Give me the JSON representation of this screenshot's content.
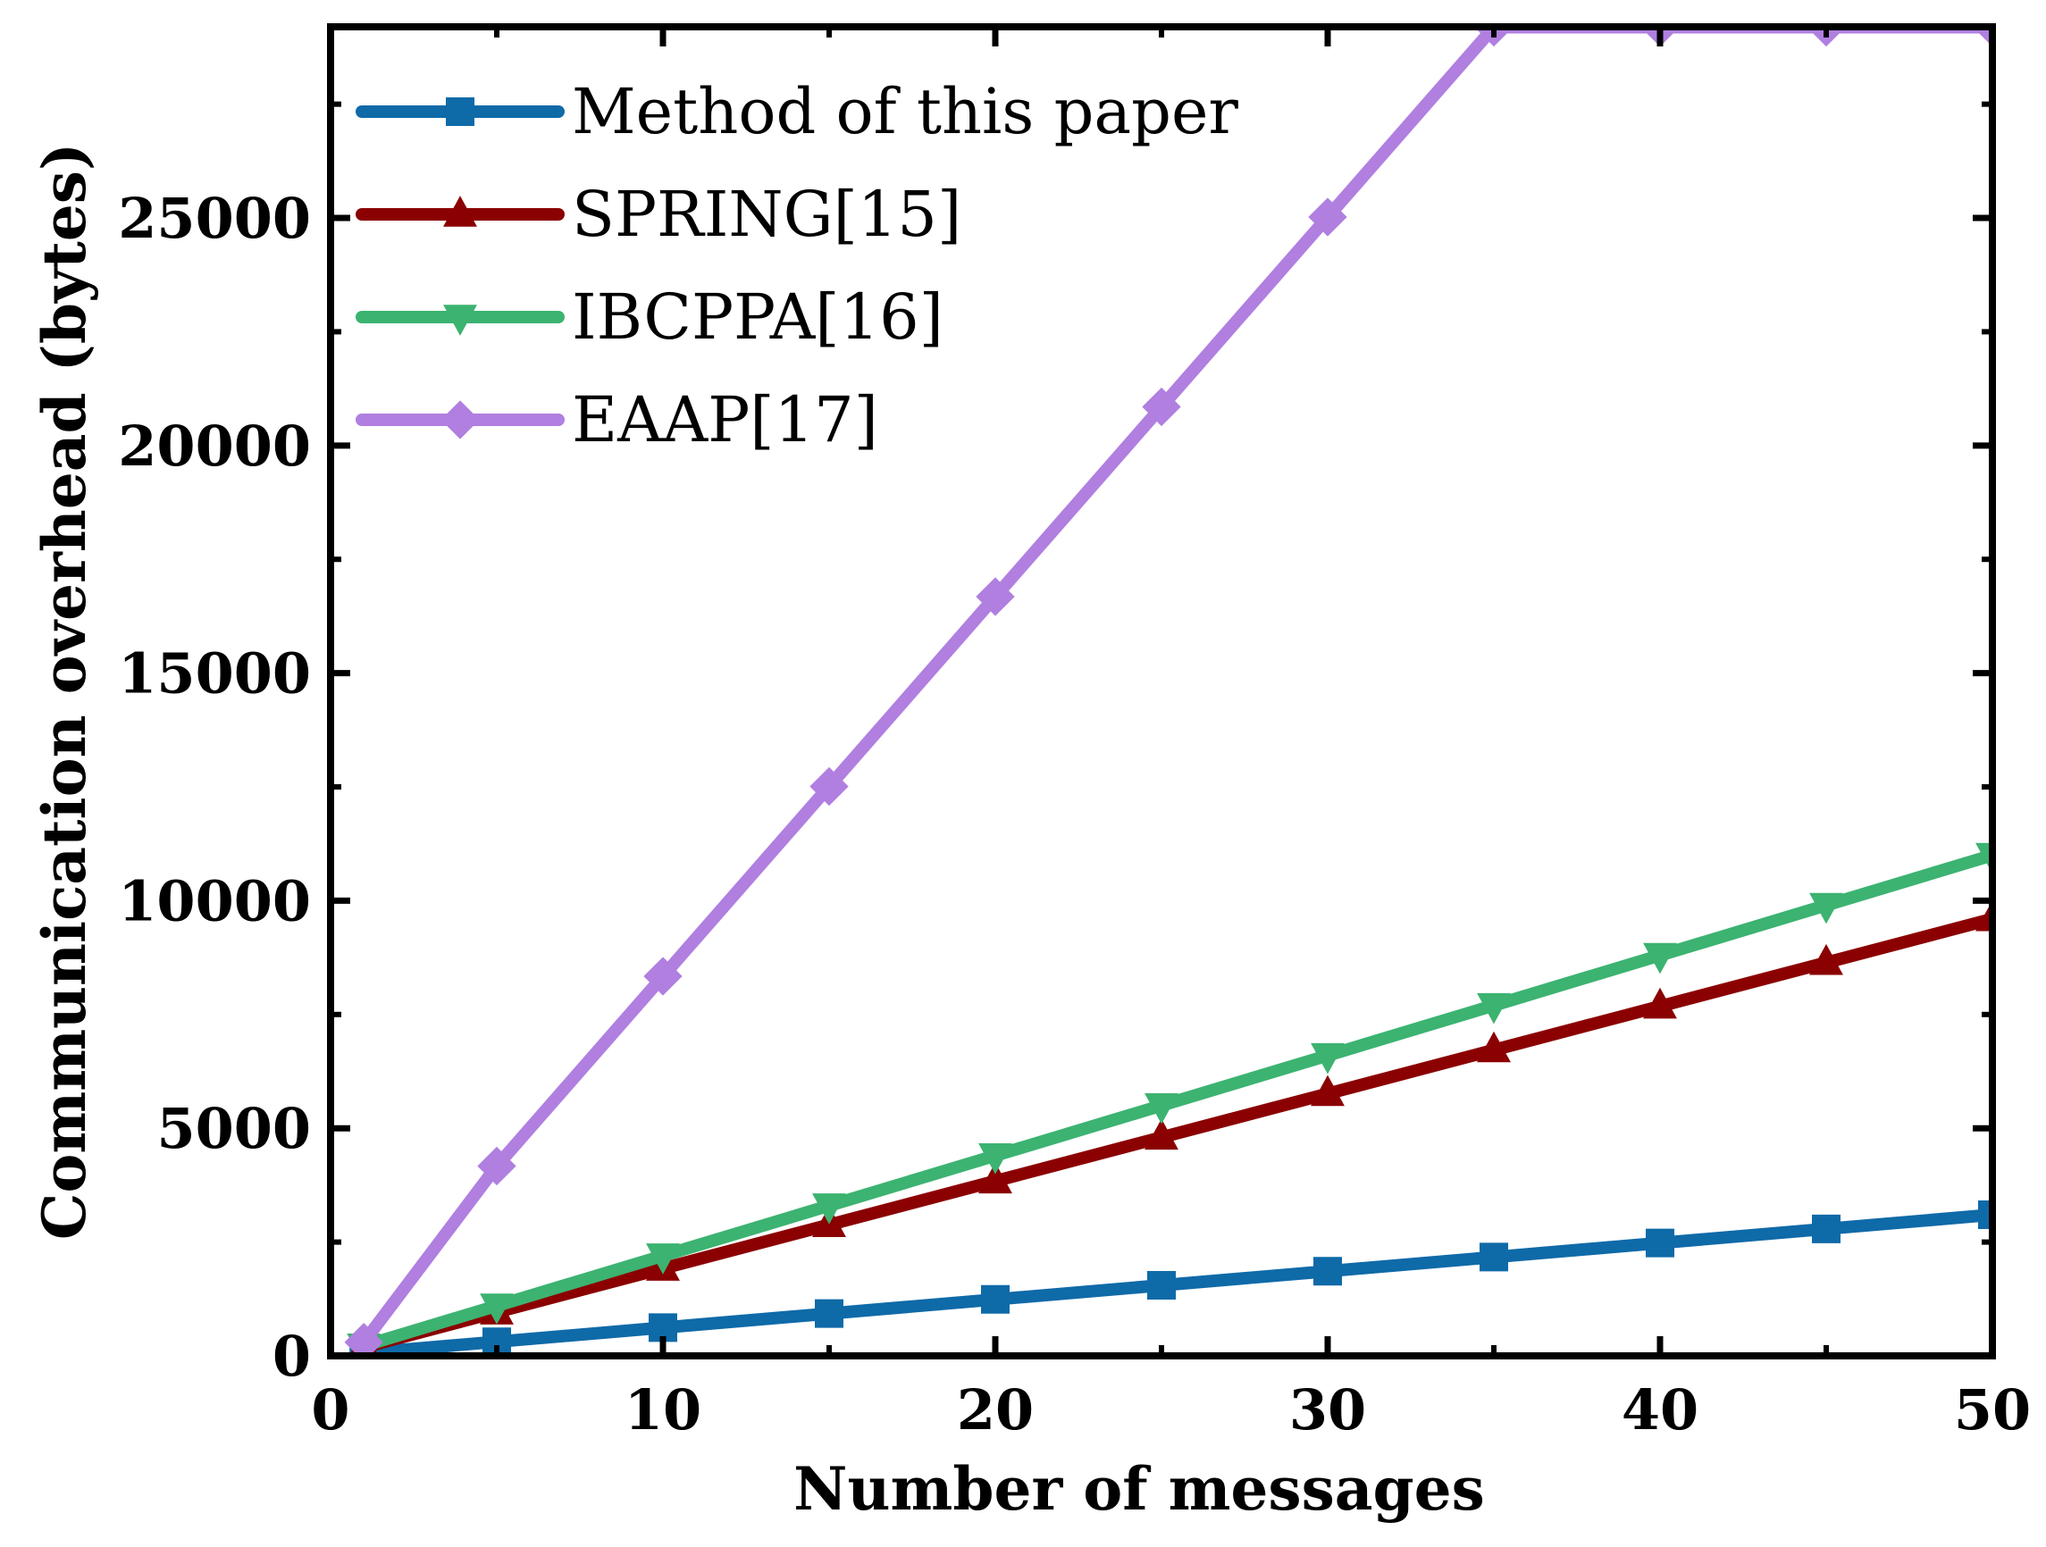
{
  "chart_data": {
    "type": "line",
    "title": "",
    "xlabel": "Number of messages",
    "ylabel": "Communication overhead (bytes)",
    "xlim": [
      0,
      50
    ],
    "ylim": [
      0,
      29200
    ],
    "xticks": [
      0,
      10,
      20,
      30,
      40,
      50
    ],
    "yticks": [
      0,
      5000,
      10000,
      15000,
      20000,
      25000
    ],
    "x": [
      1,
      5,
      10,
      15,
      20,
      25,
      30,
      35,
      40,
      45,
      50
    ],
    "grid": false,
    "legend_position": "top-left",
    "series": [
      {
        "name": "Method of this paper",
        "marker": "square",
        "color": "#0f6aa8",
        "values": [
          62,
          310,
          620,
          930,
          1240,
          1550,
          1860,
          2170,
          2480,
          2790,
          3100
        ]
      },
      {
        "name": "SPRING[15]",
        "marker": "triangle-up",
        "color": "#8b0000",
        "values": [
          190,
          960,
          1920,
          2880,
          3840,
          4800,
          5760,
          6720,
          7680,
          8640,
          9600
        ]
      },
      {
        "name": "IBCPPA[16]",
        "marker": "triangle-down",
        "color": "#3cb371",
        "values": [
          220,
          1100,
          2200,
          3300,
          4400,
          5500,
          6600,
          7700,
          8800,
          9900,
          11000
        ]
      },
      {
        "name": "EAAP[17]",
        "marker": "diamond",
        "color": "#b07fe0",
        "values": [
          300,
          4170,
          8340,
          12510,
          16680,
          20850,
          25020,
          29190,
          29190,
          29190,
          29190
        ]
      }
    ]
  }
}
